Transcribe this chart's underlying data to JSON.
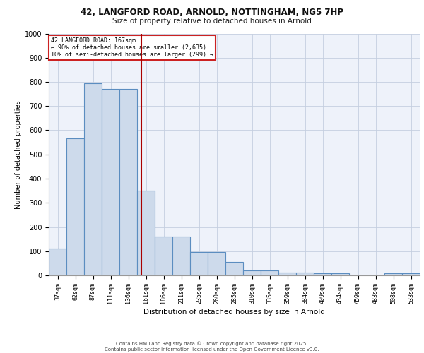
{
  "title1": "42, LANGFORD ROAD, ARNOLD, NOTTINGHAM, NG5 7HP",
  "title2": "Size of property relative to detached houses in Arnold",
  "xlabel": "Distribution of detached houses by size in Arnold",
  "ylabel": "Number of detached properties",
  "footer1": "Contains HM Land Registry data © Crown copyright and database right 2025.",
  "footer2": "Contains public sector information licensed under the Open Government Licence v3.0.",
  "annotation_line1": "42 LANGFORD ROAD: 167sqm",
  "annotation_line2": "← 90% of detached houses are smaller (2,635)",
  "annotation_line3": "10% of semi-detached houses are larger (299) →",
  "bins": [
    "37sqm",
    "62sqm",
    "87sqm",
    "111sqm",
    "136sqm",
    "161sqm",
    "186sqm",
    "211sqm",
    "235sqm",
    "260sqm",
    "285sqm",
    "310sqm",
    "335sqm",
    "359sqm",
    "384sqm",
    "409sqm",
    "434sqm",
    "459sqm",
    "483sqm",
    "508sqm",
    "533sqm"
  ],
  "values": [
    110,
    565,
    795,
    770,
    770,
    350,
    160,
    160,
    95,
    95,
    55,
    20,
    20,
    12,
    12,
    8,
    8,
    0,
    0,
    8,
    8
  ],
  "bar_color": "#cddaeb",
  "bar_edge_color": "#5b8dc0",
  "vline_color": "#aa0000",
  "background_color": "#eef2fa",
  "grid_color": "#c5cfe0",
  "ylim": [
    0,
    1000
  ],
  "yticks": [
    0,
    100,
    200,
    300,
    400,
    500,
    600,
    700,
    800,
    900,
    1000
  ]
}
